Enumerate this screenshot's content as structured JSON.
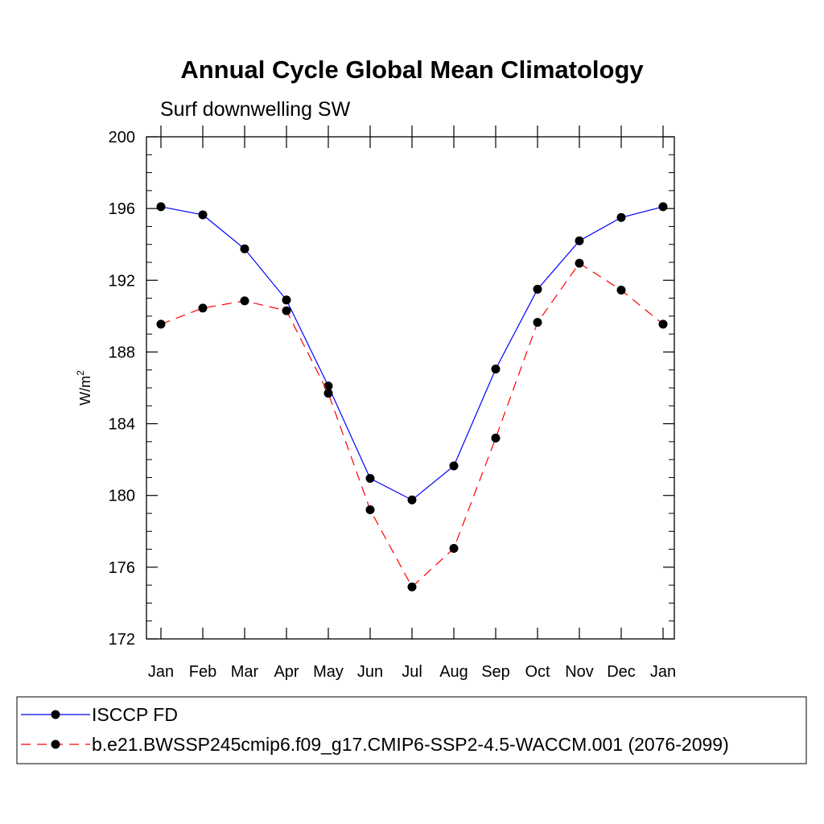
{
  "chart_data": {
    "type": "line",
    "title": "Annual Cycle Global Mean Climatology",
    "subtitle": "Surf downwelling SW",
    "ylabel": "W/m",
    "ylabel_sup": "2",
    "ylim": [
      172,
      200
    ],
    "yticks": [
      172,
      176,
      180,
      184,
      188,
      192,
      196,
      200
    ],
    "categories": [
      "Jan",
      "Feb",
      "Mar",
      "Apr",
      "May",
      "Jun",
      "Jul",
      "Aug",
      "Sep",
      "Oct",
      "Nov",
      "Dec",
      "Jan"
    ],
    "grid": false,
    "legend_position": "bottom",
    "series": [
      {
        "name": "ISCCP FD",
        "color": "#0000ff",
        "dashed": false,
        "values": [
          196.1,
          195.65,
          193.75,
          190.9,
          186.1,
          180.95,
          179.75,
          181.65,
          187.05,
          191.5,
          194.2,
          195.5,
          196.1
        ]
      },
      {
        "name": "b.e21.BWSSP245cmip6.f09_g17.CMIP6-SSP2-4.5-WACCM.001 (2076-2099)",
        "color": "#ff0000",
        "dashed": true,
        "values": [
          189.55,
          190.45,
          190.85,
          190.3,
          185.7,
          179.2,
          174.9,
          177.05,
          183.2,
          189.65,
          192.95,
          191.45,
          189.55
        ]
      }
    ]
  }
}
